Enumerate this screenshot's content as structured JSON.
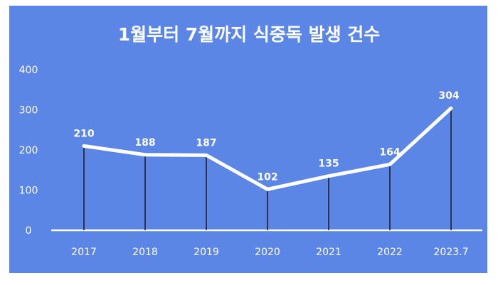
{
  "chart_data": {
    "type": "line",
    "title": "1월부터 7월까지 식중독 발생 건수",
    "categories": [
      "2017",
      "2018",
      "2019",
      "2020",
      "2021",
      "2022",
      "2023.7"
    ],
    "values": [
      210,
      188,
      187,
      102,
      135,
      164,
      304
    ],
    "data_labels": [
      "210",
      "188",
      "187",
      "102",
      "135",
      "164",
      "304"
    ],
    "y_ticks": [
      "0",
      "100",
      "200",
      "300",
      "400"
    ],
    "ylim": [
      0,
      400
    ],
    "xlabel": "",
    "ylabel": "",
    "grid": false,
    "legend": "none",
    "colors": {
      "background": "#5b86e5",
      "line": "#ffffff",
      "drop_line": "#1a1a1a",
      "text": "#ffffff"
    }
  }
}
